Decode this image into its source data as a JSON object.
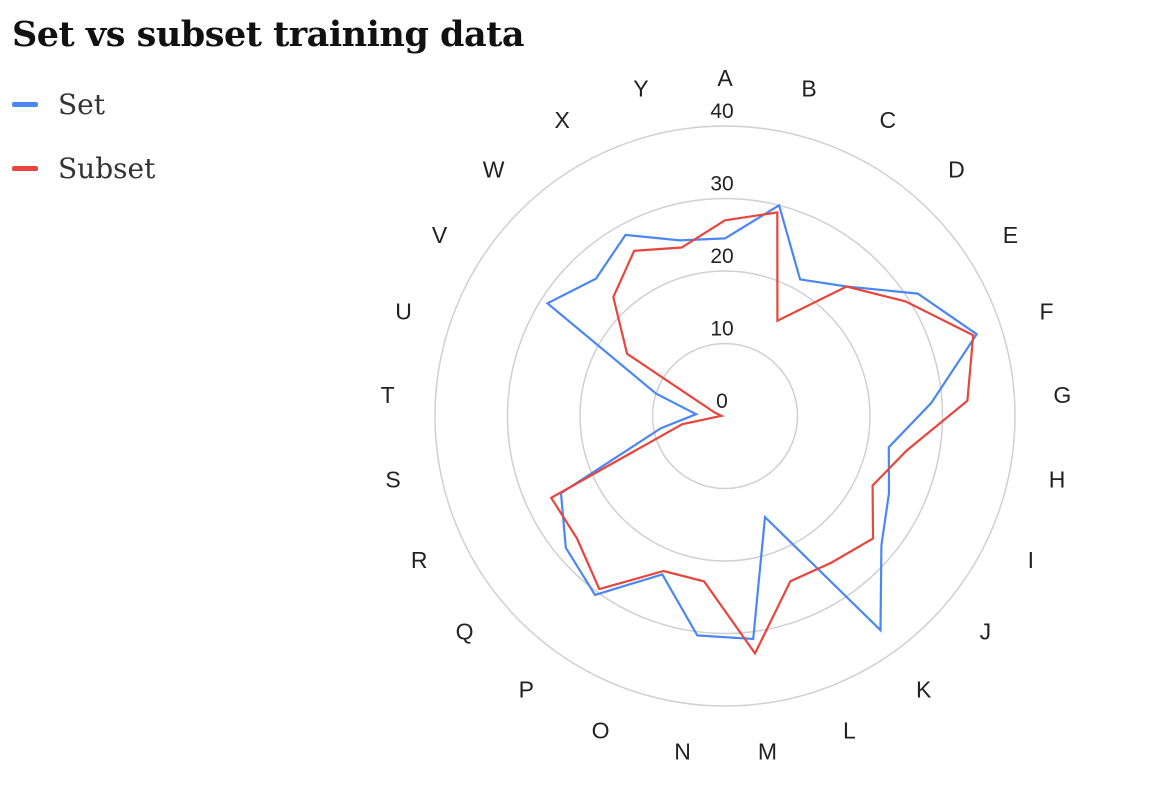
{
  "chart_data": {
    "type": "radar",
    "title": "Set vs subset training data",
    "categories": [
      "A",
      "B",
      "C",
      "D",
      "E",
      "F",
      "G",
      "H",
      "I",
      "J",
      "K",
      "L",
      "M",
      "N",
      "O",
      "P",
      "Q",
      "R",
      "S",
      "T",
      "U",
      "V",
      "W",
      "X",
      "Y"
    ],
    "rlim": [
      0,
      40
    ],
    "rticks": [
      "0",
      "10",
      "20",
      "30",
      "40"
    ],
    "grid": true,
    "legend": "top-left",
    "series": [
      {
        "name": "Set",
        "color": "#4a87f2",
        "values": [
          24.5,
          30,
          21.5,
          24.5,
          31.5,
          36.5,
          28.5,
          23,
          25,
          28,
          36.5,
          15,
          31,
          30.5,
          23.5,
          30.5,
          28.5,
          25,
          9,
          4,
          10,
          29,
          26,
          28.5,
          25
        ]
      },
      {
        "name": "Subset",
        "color": "#e8453c",
        "values": [
          27,
          29,
          15,
          24.5,
          29.5,
          36,
          33.5,
          25.5,
          22.5,
          26.5,
          25,
          24.5,
          33,
          23,
          23,
          29.5,
          26.5,
          26.5,
          6,
          0.5,
          1.5,
          16,
          22.5,
          26,
          24
        ]
      }
    ]
  }
}
